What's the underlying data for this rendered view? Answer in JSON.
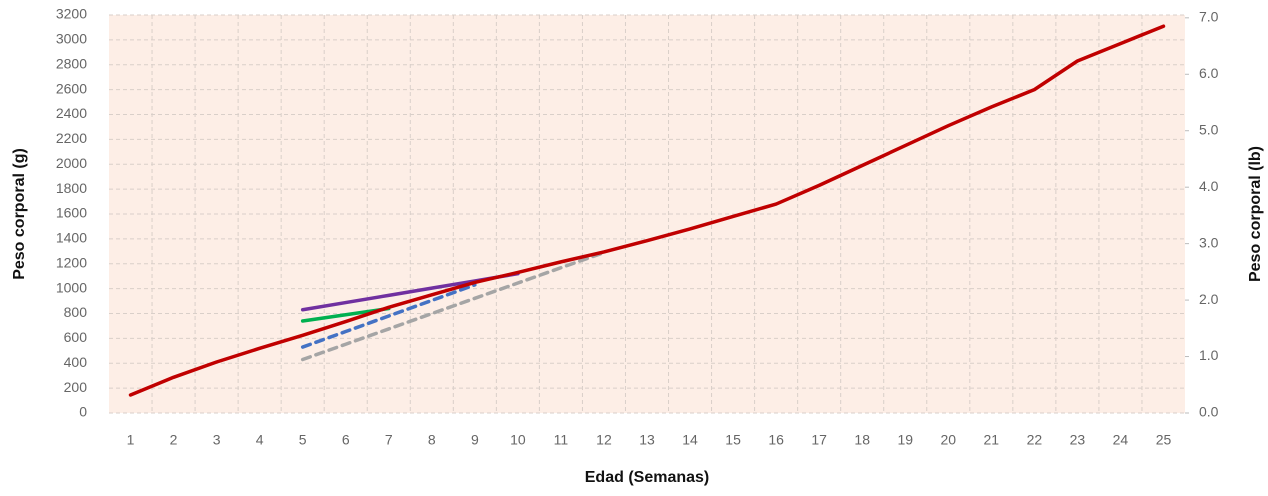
{
  "chart_data": {
    "type": "line",
    "x_label": "Edad (Semanas)",
    "y_label": "Peso corporal (g)",
    "y2_label": "Peso corporal (lb)",
    "categories": [
      "1",
      "2",
      "3",
      "4",
      "5",
      "6",
      "7",
      "8",
      "9",
      "10",
      "11",
      "12",
      "13",
      "14",
      "15",
      "16",
      "17",
      "18",
      "19",
      "20",
      "21",
      "22",
      "23",
      "24",
      "25"
    ],
    "ylim": [
      0,
      3200
    ],
    "yticks": [
      0,
      200,
      400,
      600,
      800,
      1000,
      1200,
      1400,
      1600,
      1800,
      2000,
      2200,
      2400,
      2600,
      2800,
      3000,
      3200
    ],
    "y2lim": [
      0,
      7.05
    ],
    "y2ticks": [
      {
        "value": 0,
        "label": "0.0"
      },
      {
        "value": 1,
        "label": "1.0"
      },
      {
        "value": 2,
        "label": "2.0"
      },
      {
        "value": 3,
        "label": "3.0"
      },
      {
        "value": 4,
        "label": "4.0"
      },
      {
        "value": 5,
        "label": "5.0"
      },
      {
        "value": 6,
        "label": "6.0"
      },
      {
        "value": 7,
        "label": "7.0"
      }
    ],
    "grid": true,
    "series": [
      {
        "color": "#7030a0",
        "dash": false,
        "values": [
          null,
          null,
          null,
          null,
          830,
          888,
          946,
          1004,
          1062,
          1120,
          null,
          null,
          null,
          null,
          null,
          null,
          null,
          null,
          null,
          null,
          null,
          null,
          null,
          null,
          null
        ]
      },
      {
        "color": "#00b050",
        "dash": false,
        "values": [
          null,
          null,
          null,
          null,
          740,
          790,
          840,
          null,
          null,
          null,
          null,
          null,
          null,
          null,
          null,
          null,
          null,
          null,
          null,
          null,
          null,
          null,
          null,
          null,
          null
        ]
      },
      {
        "color": "#4472c4",
        "dash": true,
        "values": [
          null,
          null,
          null,
          null,
          530,
          655,
          780,
          905,
          1030,
          null,
          null,
          null,
          null,
          null,
          null,
          null,
          null,
          null,
          null,
          null,
          null,
          null,
          null,
          null,
          null
        ]
      },
      {
        "color": "#a5a5a5",
        "dash": true,
        "values": [
          null,
          null,
          null,
          null,
          430,
          553,
          676,
          799,
          922,
          1045,
          1168,
          1290,
          null,
          null,
          null,
          null,
          null,
          null,
          null,
          null,
          null,
          null,
          null,
          null,
          null
        ]
      },
      {
        "color": "#c00000",
        "dash": false,
        "values": [
          145,
          287,
          410,
          520,
          625,
          735,
          850,
          950,
          1050,
          1130,
          1215,
          1295,
          1385,
          1480,
          1580,
          1680,
          1830,
          1990,
          2150,
          2310,
          2460,
          2600,
          2830,
          2970,
          3110
        ]
      }
    ]
  }
}
